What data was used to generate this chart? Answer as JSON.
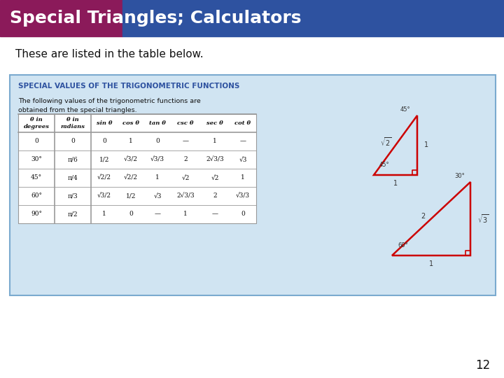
{
  "title": "Special Triangles; Calculators",
  "title_bg_color1": "#8B1A5A",
  "title_bg_color2": "#2E52A0",
  "title_text_color": "#FFFFFF",
  "body_bg_color": "#FFFFFF",
  "subtitle_text": "These are listed in the table below.",
  "box_bg_color": "#D0E4F2",
  "box_border_color": "#7aaacf",
  "box_title": "SPECIAL VALUES OF THE TRIGONOMETRIC FUNCTIONS",
  "box_title_color": "#2E52A0",
  "box_desc": "The following values of the trigonometric functions are\nobtained from the special triangles.",
  "page_number": "12",
  "table_headers": [
    "θ in\ndegrees",
    "θ in\nradians",
    "sin θ",
    "cos θ",
    "tan θ",
    "csc θ",
    "sec θ",
    "cot θ"
  ],
  "table_rows": [
    [
      "0",
      "0",
      "0",
      "1",
      "0",
      "—",
      "1",
      "—"
    ],
    [
      "30°",
      "π/6",
      "1/2",
      "√3/2",
      "√3/3",
      "2",
      "2√3/3",
      "√3"
    ],
    [
      "45°",
      "π/4",
      "√2/2",
      "√2/2",
      "1",
      "√2",
      "√2",
      "1"
    ],
    [
      "60°",
      "π/3",
      "√3/2",
      "1/2",
      "√3",
      "2√3/3",
      "2",
      "√3/3"
    ],
    [
      "90°",
      "π/2",
      "1",
      "0",
      "—",
      "1",
      "—",
      "0"
    ]
  ],
  "triangle_color": "#CC0000"
}
